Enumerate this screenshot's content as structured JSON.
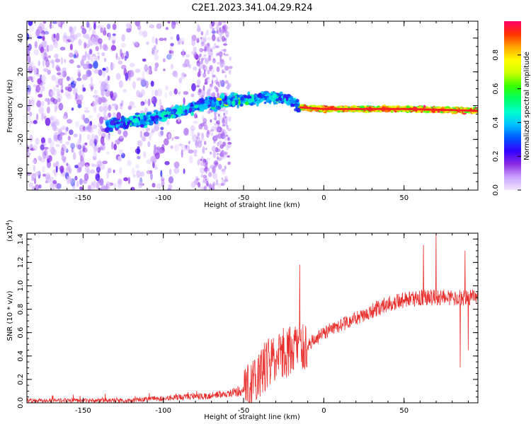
{
  "title": "C2E1.2023.341.04.29.R24",
  "chart_data": [
    {
      "type": "heatmap",
      "xlabel": "Height of straight line (km)",
      "ylabel": "Frequency (Hz)",
      "xlim": [
        -185,
        96
      ],
      "ylim": [
        -50,
        50
      ],
      "xticks": [
        -150,
        -100,
        -50,
        0,
        50
      ],
      "yticks": [
        -40,
        -20,
        0,
        20,
        40
      ],
      "colorbar": {
        "label": "Normalized spectral amplitude",
        "range": [
          0,
          1
        ],
        "ticks": [
          0.0,
          0.2,
          0.4,
          0.6,
          0.8
        ],
        "colors": [
          "#f2e6ff",
          "#c9a3ff",
          "#8a2be2",
          "#3300ff",
          "#0055ff",
          "#00bfff",
          "#00ffd0",
          "#00ff66",
          "#33ff00",
          "#ccff00",
          "#ffff00",
          "#ffa500",
          "#ff3300",
          "#ff0066"
        ]
      },
      "trend": [
        {
          "x": -135,
          "y": -12
        },
        {
          "x": -100,
          "y": -6
        },
        {
          "x": -75,
          "y": 1
        },
        {
          "x": -55,
          "y": 3
        },
        {
          "x": -35,
          "y": 5
        },
        {
          "x": -22,
          "y": 4
        },
        {
          "x": -15,
          "y": -1
        },
        {
          "x": 0,
          "y": -2
        },
        {
          "x": 50,
          "y": -2
        },
        {
          "x": 96,
          "y": -3
        }
      ],
      "noise_band": {
        "x0": -185,
        "x1": -60,
        "y0": -50,
        "y1": 50
      }
    },
    {
      "type": "line",
      "xlabel": "Height of straight line (km)",
      "ylabel": "SNR (10 * v/v)",
      "yscale_label": "(x10",
      "yscale_exp": "4",
      "xlim": [
        -185,
        96
      ],
      "ylim": [
        0,
        1.45
      ],
      "xticks": [
        -150,
        -100,
        -50,
        0,
        50
      ],
      "yticks": [
        0.0,
        0.2,
        0.4,
        0.6,
        0.8,
        1.0,
        1.2,
        1.4
      ],
      "color": "#e8302e",
      "envelope": [
        {
          "x": -185,
          "y": 0.02
        },
        {
          "x": -120,
          "y": 0.02
        },
        {
          "x": -100,
          "y": 0.04
        },
        {
          "x": -70,
          "y": 0.06
        },
        {
          "x": -50,
          "y": 0.1
        },
        {
          "x": -40,
          "y": 0.25
        },
        {
          "x": -30,
          "y": 0.4
        },
        {
          "x": -20,
          "y": 0.45
        },
        {
          "x": -10,
          "y": 0.5
        },
        {
          "x": 0,
          "y": 0.6
        },
        {
          "x": 20,
          "y": 0.72
        },
        {
          "x": 40,
          "y": 0.85
        },
        {
          "x": 60,
          "y": 0.9
        },
        {
          "x": 80,
          "y": 0.9
        },
        {
          "x": 96,
          "y": 0.9
        }
      ],
      "spikes": [
        {
          "x": -15,
          "y": 1.18
        },
        {
          "x": 70,
          "y": 1.45
        },
        {
          "x": 62,
          "y": 1.35
        },
        {
          "x": 88,
          "y": 1.3
        },
        {
          "x": 85,
          "y": 0.3
        },
        {
          "x": 90,
          "y": 0.45
        }
      ]
    }
  ]
}
